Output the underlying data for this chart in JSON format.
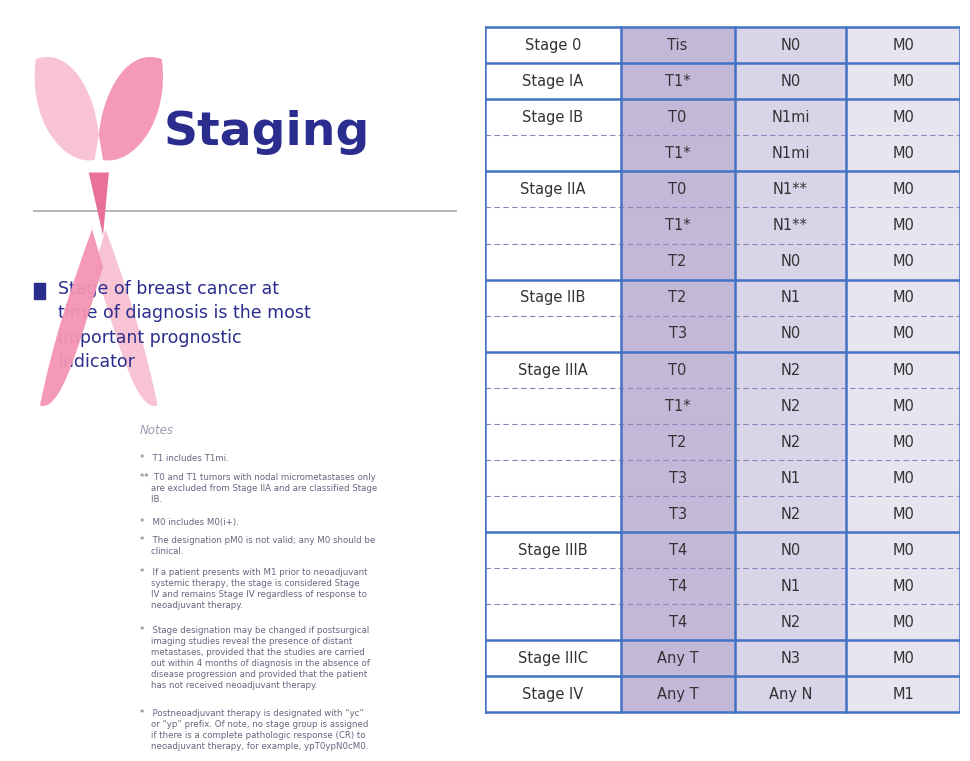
{
  "title": "Staging",
  "title_color": "#2B2D8E",
  "bullet_text": "Stage of breast cancer at\ntime of diagnosis is the most\nimportant prognostic\nindicator",
  "bullet_color": "#2B2D8E",
  "notes_title": "Notes",
  "notes_color": "#9B9BB0",
  "table_rows": [
    {
      "stage": "Stage 0",
      "T": "Tis",
      "N": "N0",
      "M": "M0",
      "last_in_stage": true
    },
    {
      "stage": "Stage IA",
      "T": "T1*",
      "N": "N0",
      "M": "M0",
      "last_in_stage": true
    },
    {
      "stage": "Stage IB",
      "T": "T0",
      "N": "N1mi",
      "M": "M0",
      "last_in_stage": false
    },
    {
      "stage": "",
      "T": "T1*",
      "N": "N1mi",
      "M": "M0",
      "last_in_stage": true
    },
    {
      "stage": "Stage IIA",
      "T": "T0",
      "N": "N1**",
      "M": "M0",
      "last_in_stage": false
    },
    {
      "stage": "",
      "T": "T1*",
      "N": "N1**",
      "M": "M0",
      "last_in_stage": false
    },
    {
      "stage": "",
      "T": "T2",
      "N": "N0",
      "M": "M0",
      "last_in_stage": true
    },
    {
      "stage": "Stage IIB",
      "T": "T2",
      "N": "N1",
      "M": "M0",
      "last_in_stage": false
    },
    {
      "stage": "",
      "T": "T3",
      "N": "N0",
      "M": "M0",
      "last_in_stage": true
    },
    {
      "stage": "Stage IIIA",
      "T": "T0",
      "N": "N2",
      "M": "M0",
      "last_in_stage": false
    },
    {
      "stage": "",
      "T": "T1*",
      "N": "N2",
      "M": "M0",
      "last_in_stage": false
    },
    {
      "stage": "",
      "T": "T2",
      "N": "N2",
      "M": "M0",
      "last_in_stage": false
    },
    {
      "stage": "",
      "T": "T3",
      "N": "N1",
      "M": "M0",
      "last_in_stage": false
    },
    {
      "stage": "",
      "T": "T3",
      "N": "N2",
      "M": "M0",
      "last_in_stage": true
    },
    {
      "stage": "Stage IIIB",
      "T": "T4",
      "N": "N0",
      "M": "M0",
      "last_in_stage": false
    },
    {
      "stage": "",
      "T": "T4",
      "N": "N1",
      "M": "M0",
      "last_in_stage": false
    },
    {
      "stage": "",
      "T": "T4",
      "N": "N2",
      "M": "M0",
      "last_in_stage": true
    },
    {
      "stage": "Stage IIIC",
      "T": "Any T",
      "N": "N3",
      "M": "M0",
      "last_in_stage": true
    },
    {
      "stage": "Stage IV",
      "T": "Any T",
      "N": "Any N",
      "M": "M1",
      "last_in_stage": true
    }
  ],
  "col_T_color": "#C4B8D9",
  "col_N_color": "#D9D4E8",
  "col_M_color": "#E8E5F0",
  "border_color_solid": "#4472C4",
  "border_color_dashed": "#8888BB",
  "table_text_color": "#333333",
  "bg_color": "#FFFFFF",
  "notes_list": [
    "*   T1 includes T1mi.",
    "**  T0 and T1 tumors with nodal micrometastases only\n    are excluded from Stage IIA and are classified Stage\n    IB.",
    "*   M0 includes M0(i+).",
    "*   The designation pM0 is not valid; any M0 should be\n    clinical.",
    "*   If a patient presents with M1 prior to neoadjuvant\n    systemic therapy, the stage is considered Stage\n    IV and remains Stage IV regardless of response to\n    neoadjuvant therapy.",
    "*   Stage designation may be changed if postsurgical\n    imaging studies reveal the presence of distant\n    metastases, provided that the studies are carried\n    out within 4 months of diagnosis in the absence of\n    disease progression and provided that the patient\n    has not received neoadjuvant therapy.",
    "*   Postneoadjuvant therapy is designated with “yc”\n    or “yp” prefix. Of note, no stage group is assigned\n    if there is a complete pathologic response (CR) to\n    neoadjuvant therapy, for example, ypT0ypN0cM0."
  ]
}
